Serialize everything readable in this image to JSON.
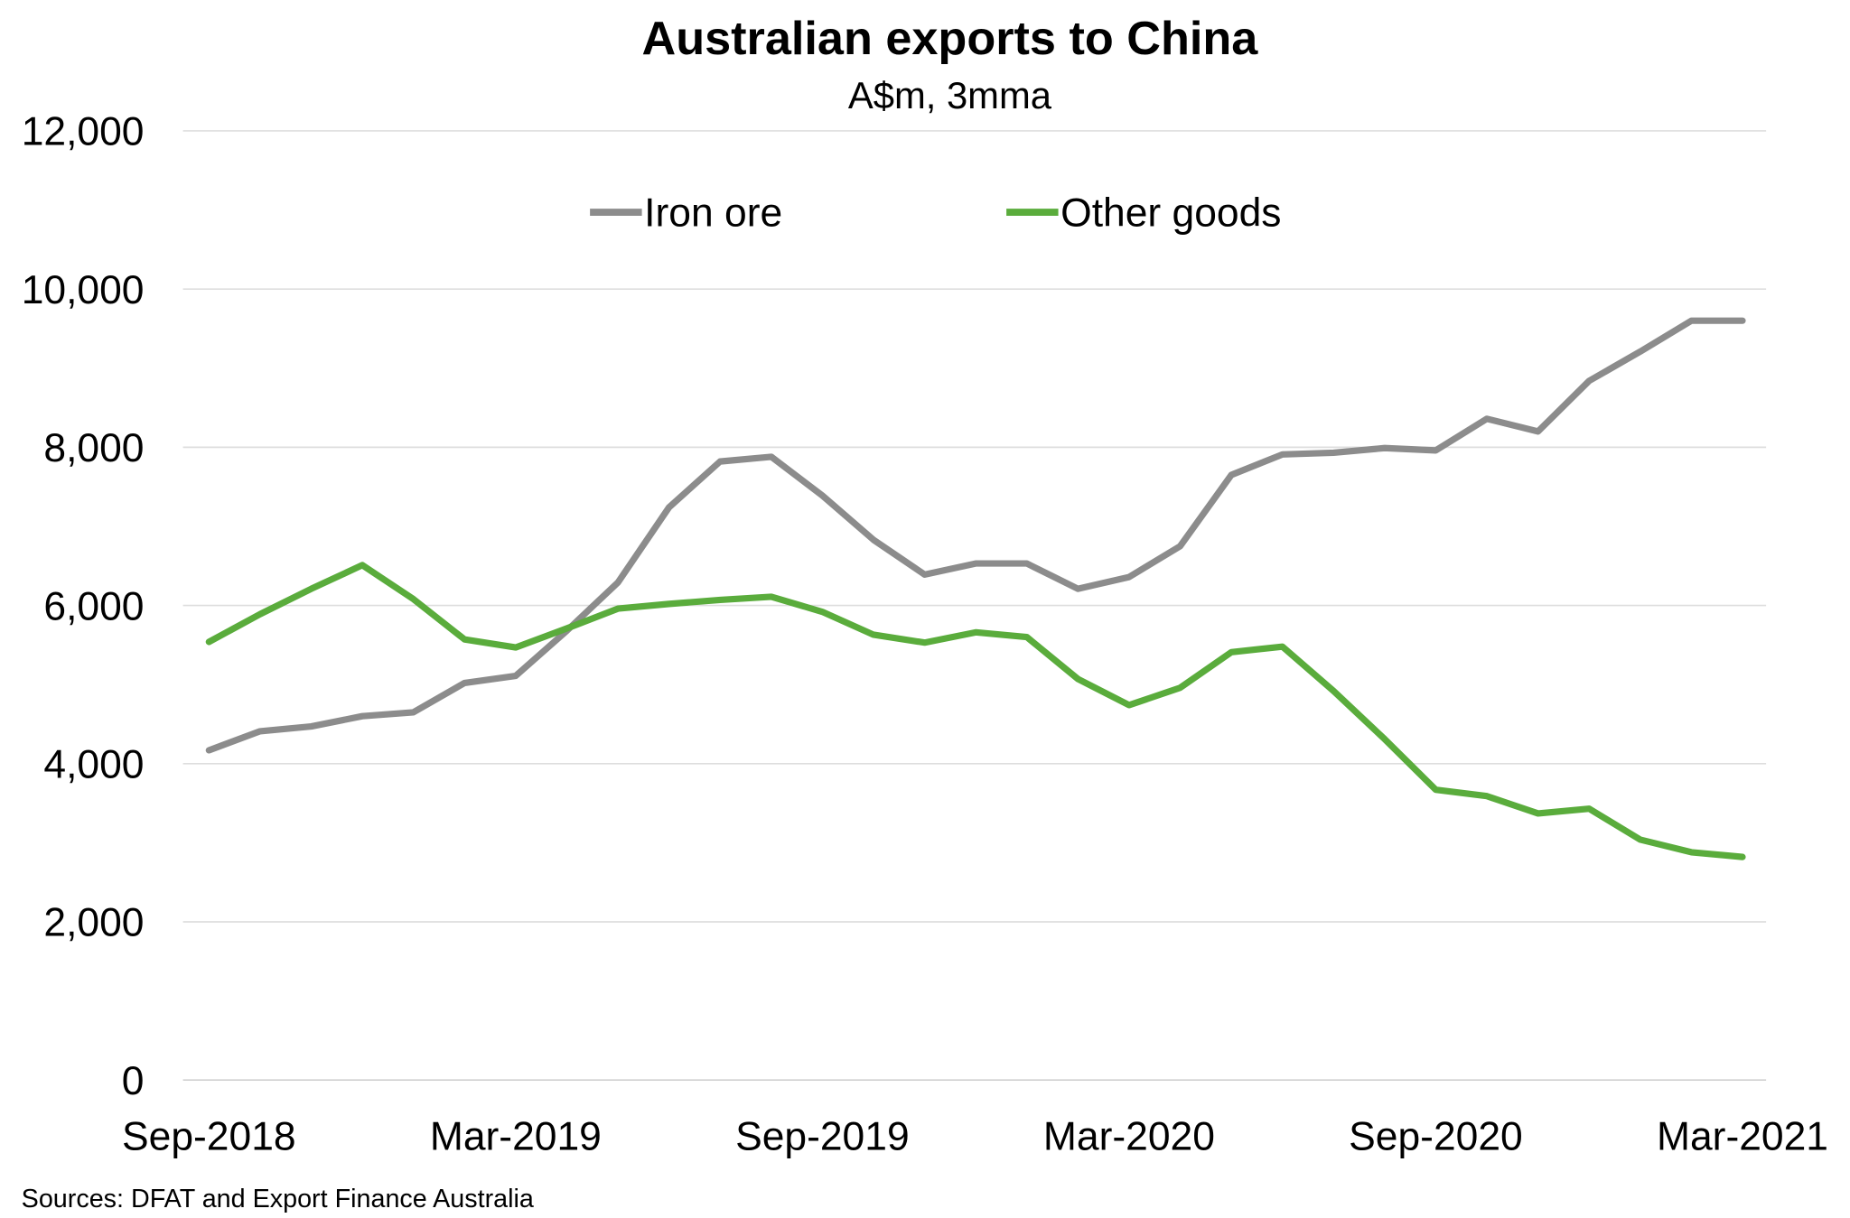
{
  "chart_data": {
    "type": "line",
    "title": "Australian exports to China",
    "subtitle": "A$m, 3mma",
    "xlabel": "",
    "ylabel": "",
    "ylim": [
      0,
      12000
    ],
    "yticks": [
      "0",
      "2,000",
      "4,000",
      "6,000",
      "8,000",
      "10,000",
      "12,000"
    ],
    "ytick_values": [
      0,
      2000,
      4000,
      6000,
      8000,
      10000,
      12000
    ],
    "xtick_labels": [
      "Sep-2018",
      "Mar-2019",
      "Sep-2019",
      "Mar-2020",
      "Sep-2020",
      "Mar-2021"
    ],
    "xtick_indices": [
      0,
      6,
      12,
      18,
      24,
      30
    ],
    "x": [
      "Sep-2018",
      "Oct-2018",
      "Nov-2018",
      "Dec-2018",
      "Jan-2019",
      "Feb-2019",
      "Mar-2019",
      "Apr-2019",
      "May-2019",
      "Jun-2019",
      "Jul-2019",
      "Aug-2019",
      "Sep-2019",
      "Oct-2019",
      "Nov-2019",
      "Dec-2019",
      "Jan-2020",
      "Feb-2020",
      "Mar-2020",
      "Apr-2020",
      "May-2020",
      "Jun-2020",
      "Jul-2020",
      "Aug-2020",
      "Sep-2020",
      "Oct-2020",
      "Nov-2020",
      "Dec-2020",
      "Jan-2021",
      "Feb-2021",
      "Mar-2021"
    ],
    "series": [
      {
        "name": "Iron ore",
        "color": "#8c8c8c",
        "values": [
          4170,
          4410,
          4470,
          4600,
          4650,
          5020,
          5110,
          5680,
          6290,
          7240,
          7820,
          7880,
          7390,
          6830,
          6390,
          6530,
          6530,
          6210,
          6360,
          6750,
          7650,
          7910,
          7930,
          7990,
          7960,
          8360,
          8200,
          8840,
          9210,
          9600,
          9600
        ]
      },
      {
        "name": "Other goods",
        "color": "#5aac3c",
        "values": [
          5540,
          5890,
          6210,
          6510,
          6080,
          5570,
          5470,
          5710,
          5960,
          6020,
          6070,
          6110,
          5920,
          5630,
          5530,
          5660,
          5600,
          5070,
          4740,
          4960,
          5410,
          5480,
          4920,
          4310,
          3670,
          3590,
          3370,
          3430,
          3040,
          2880,
          2820
        ]
      }
    ],
    "grid": true,
    "legend_position": "top-center",
    "source": "Sources: DFAT and Export Finance Australia"
  }
}
